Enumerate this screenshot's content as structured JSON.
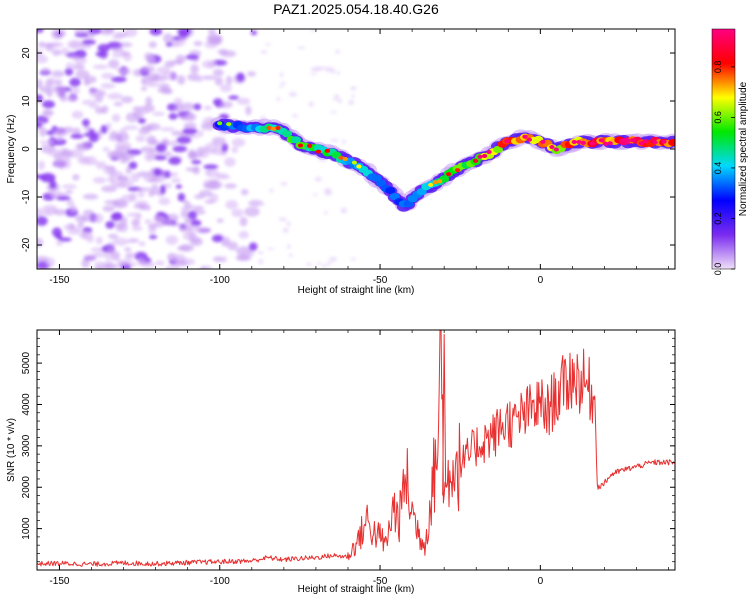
{
  "title": "PAZ1.2025.054.18.40.G26",
  "chart_data": [
    {
      "type": "heatmap",
      "xlabel": "Height of straight line (km)",
      "ylabel": "Frequency (Hz)",
      "xlim": [
        -157,
        42
      ],
      "ylim": [
        -25,
        25
      ],
      "xticks": [
        -150,
        -100,
        -50,
        0
      ],
      "yticks": [
        -20,
        -10,
        0,
        10,
        20
      ],
      "colorbar": {
        "label": "Normalized spectral amplitude",
        "range": [
          0.0,
          0.95
        ],
        "ticks": [
          0.0,
          0.2,
          0.4,
          0.6,
          0.8
        ],
        "colormap": [
          "#f0e0f8",
          "#7a2bf0",
          "#0000ff",
          "#00d8ff",
          "#00e800",
          "#ffff00",
          "#ff0000",
          "#ff0080"
        ]
      },
      "noise_region_x": [
        -157,
        -85
      ],
      "ridge": [
        {
          "x": -100,
          "y": 5
        },
        {
          "x": -90,
          "y": 4.5
        },
        {
          "x": -82,
          "y": 4.5
        },
        {
          "x": -75,
          "y": 1
        },
        {
          "x": -65,
          "y": -1
        },
        {
          "x": -55,
          "y": -4
        },
        {
          "x": -48,
          "y": -8
        },
        {
          "x": -42,
          "y": -12
        },
        {
          "x": -38,
          "y": -9
        },
        {
          "x": -32,
          "y": -7
        },
        {
          "x": -28,
          "y": -5
        },
        {
          "x": -22,
          "y": -3
        },
        {
          "x": -16,
          "y": -1
        },
        {
          "x": -10,
          "y": 1.5
        },
        {
          "x": -5,
          "y": 2.5
        },
        {
          "x": 0,
          "y": 1.5
        },
        {
          "x": 5,
          "y": 0
        },
        {
          "x": 12,
          "y": 1.5
        },
        {
          "x": 20,
          "y": 1.5
        },
        {
          "x": 30,
          "y": 1.5
        },
        {
          "x": 42,
          "y": 1.5
        }
      ],
      "ridge_amplitude": [
        0.3,
        0.4,
        0.5,
        0.55,
        0.5,
        0.4,
        0.35,
        0.35,
        0.4,
        0.45,
        0.55,
        0.6,
        0.7,
        0.75,
        0.8,
        0.75,
        0.7,
        0.8,
        0.85,
        0.9,
        0.85
      ]
    },
    {
      "type": "line",
      "xlabel": "Height of straight line (km)",
      "ylabel": "SNR (10 * v/v)",
      "xlim": [
        -157,
        42
      ],
      "ylim": [
        0,
        5800
      ],
      "xticks": [
        -150,
        -100,
        -50,
        0
      ],
      "yticks": [
        1000,
        2000,
        3000,
        4000,
        5000
      ],
      "color": "#e83030",
      "series": [
        {
          "x": [
            -157,
            -150,
            -140,
            -130,
            -120,
            -110,
            -100,
            -90,
            -85,
            -80,
            -75,
            -70,
            -65,
            -60,
            -57,
            -54,
            -52,
            -50,
            -48,
            -46,
            -44,
            -42,
            -40,
            -38,
            -36,
            -34,
            -32,
            -31,
            -30,
            -29,
            -28,
            -26,
            -24,
            -22,
            -20,
            -18,
            -16,
            -14,
            -12,
            -10,
            -8,
            -6,
            -4,
            -2,
            0,
            2,
            4,
            6,
            8,
            10,
            12,
            14,
            16,
            17,
            18,
            20,
            22,
            25,
            30,
            35,
            42
          ],
          "y": [
            150,
            160,
            140,
            170,
            150,
            180,
            200,
            220,
            300,
            250,
            280,
            300,
            350,
            320,
            700,
            1200,
            900,
            800,
            600,
            1500,
            1200,
            2300,
            1400,
            900,
            600,
            1800,
            3000,
            5700,
            1800,
            2000,
            2700,
            2500,
            2600,
            2800,
            3000,
            3100,
            3200,
            3300,
            3500,
            3600,
            3500,
            3700,
            3800,
            3900,
            4000,
            3800,
            4100,
            4300,
            4500,
            4700,
            4600,
            4500,
            4300,
            4000,
            2000,
            2100,
            2300,
            2400,
            2500,
            2600,
            2600
          ]
        }
      ]
    }
  ]
}
